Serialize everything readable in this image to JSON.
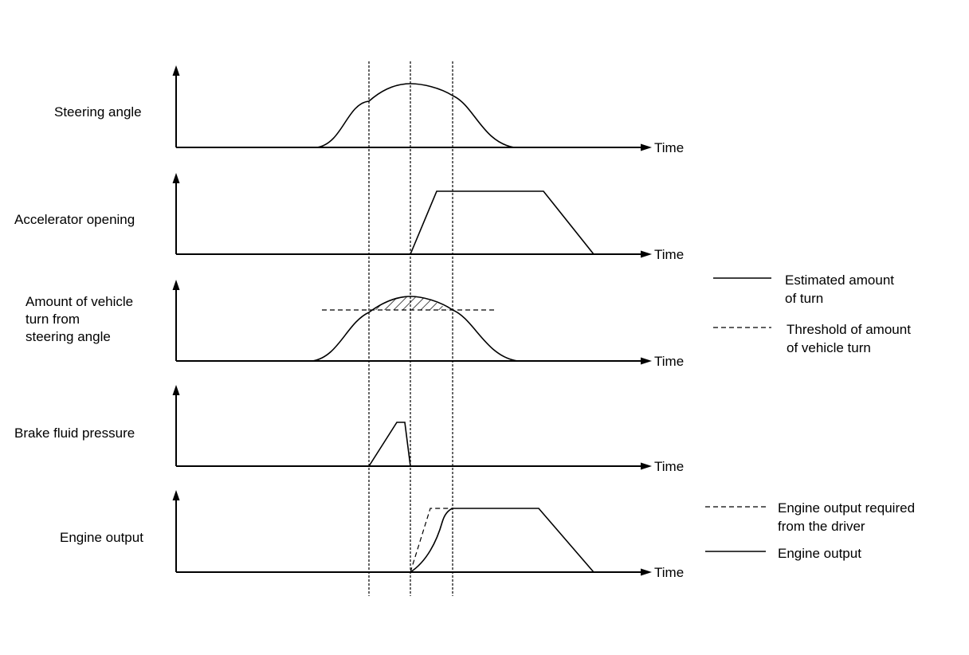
{
  "rows": [
    {
      "id": "steering",
      "label_lines": [
        "Steering angle"
      ],
      "axis_label": "Time"
    },
    {
      "id": "accelerator",
      "label_lines": [
        "Accelerator opening"
      ],
      "axis_label": "Time"
    },
    {
      "id": "vehicle_turn",
      "label_lines": [
        "Amount of vehicle",
        "turn from",
        "steering angle"
      ],
      "axis_label": "Time"
    },
    {
      "id": "brake",
      "label_lines": [
        "Brake fluid pressure"
      ],
      "axis_label": "Time"
    },
    {
      "id": "engine",
      "label_lines": [
        "Engine output"
      ],
      "axis_label": "Time"
    }
  ],
  "legends": {
    "vehicle_turn": [
      {
        "style": "solid",
        "lines": [
          "Estimated amount",
          "of turn"
        ]
      },
      {
        "style": "dashed",
        "lines": [
          "Threshold of amount",
          "of vehicle turn"
        ]
      }
    ],
    "engine": [
      {
        "style": "dashed",
        "lines": [
          "Engine output required",
          "from the driver"
        ]
      },
      {
        "style": "solid",
        "lines": [
          "Engine output"
        ]
      }
    ]
  }
}
